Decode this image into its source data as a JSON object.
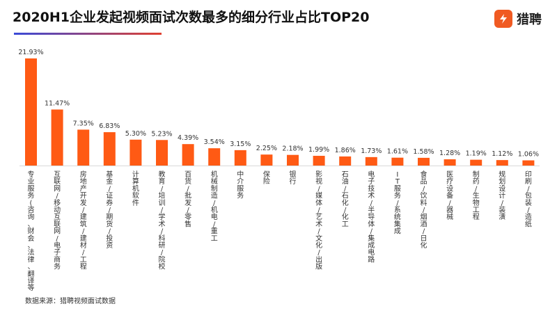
{
  "header": {
    "title": "2020H1企业发起视频面试次数最多的细分行业占比TOP20",
    "brand_name": "猎聘",
    "brand_color": "#f05a22",
    "brand_icon": "brand-logo-icon"
  },
  "footer": {
    "source": "数据来源：猎聘视频面试数据"
  },
  "chart_data": {
    "type": "bar",
    "title": "2020H1企业发起视频面试次数最多的细分行业占比TOP20",
    "xlabel": "",
    "ylabel": "",
    "ylim": [
      0,
      22
    ],
    "grid": false,
    "bar_color": "#ff5a14",
    "categories": [
      "专业服务(咨询、财会、法律、翻译等)",
      "互联网/移动互联网/电子商务",
      "房地产开发/建筑/建材/工程",
      "基金/证券/期货/投资",
      "计算机软件",
      "教育/培训/学术/科研/院校",
      "百货/批发/零售",
      "机械制造/机电/重工",
      "中介服务",
      "保险",
      "银行",
      "影视/媒体/艺术/文化/出版",
      "石油/石化/化工",
      "电子技术/半导体/集成电路",
      "IT服务/系统集成",
      "食品/饮料/烟酒/日化",
      "医疗设备/器械",
      "制药/生物工程",
      "规划设计/装潢",
      "印刷/包装/造纸"
    ],
    "values": [
      21.93,
      11.47,
      7.35,
      6.83,
      5.3,
      5.23,
      4.39,
      3.54,
      3.15,
      2.25,
      2.18,
      1.99,
      1.86,
      1.73,
      1.61,
      1.58,
      1.28,
      1.19,
      1.12,
      1.06
    ],
    "value_labels": [
      "21.93%",
      "11.47%",
      "7.35%",
      "6.83%",
      "5.30%",
      "5.23%",
      "4.39%",
      "3.54%",
      "3.15%",
      "2.25%",
      "2.18%",
      "1.99%",
      "1.86%",
      "1.73%",
      "1.61%",
      "1.58%",
      "1.28%",
      "1.19%",
      "1.12%",
      "1.06%"
    ]
  }
}
